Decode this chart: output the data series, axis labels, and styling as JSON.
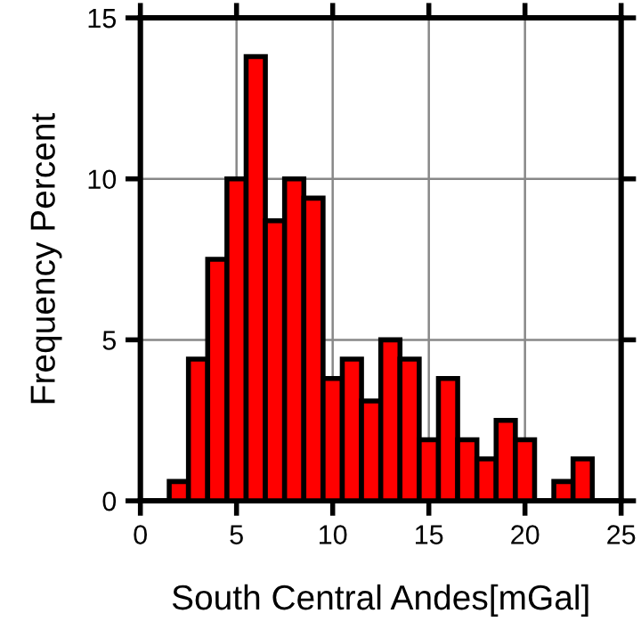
{
  "chart_data": {
    "type": "histogram",
    "xlabel": "South Central Andes[mGal]",
    "ylabel": "Frequency Percent",
    "bins": [
      1.5,
      2.5,
      3.5,
      4.5,
      5.5,
      6.5,
      7.5,
      8.5,
      9.5,
      10.5,
      11.5,
      12.5,
      13.5,
      14.5,
      15.5,
      16.5,
      17.5,
      18.5,
      19.5,
      20.5,
      21.5,
      22.5,
      23.5
    ],
    "values": [
      0.6,
      4.4,
      7.5,
      10,
      13.8,
      8.7,
      10,
      9.4,
      3.8,
      4.4,
      3.1,
      5.0,
      4.4,
      1.9,
      3.8,
      1.9,
      1.3,
      2.5,
      1.9,
      0,
      0.6,
      1.3
    ],
    "color": "#ff0000",
    "xlim": [
      0,
      25
    ],
    "ylim": [
      0,
      15
    ],
    "xticks": [
      0,
      5,
      10,
      15,
      20,
      25
    ],
    "yticks": [
      0,
      5,
      10,
      15
    ],
    "grid": true,
    "legend": false
  }
}
